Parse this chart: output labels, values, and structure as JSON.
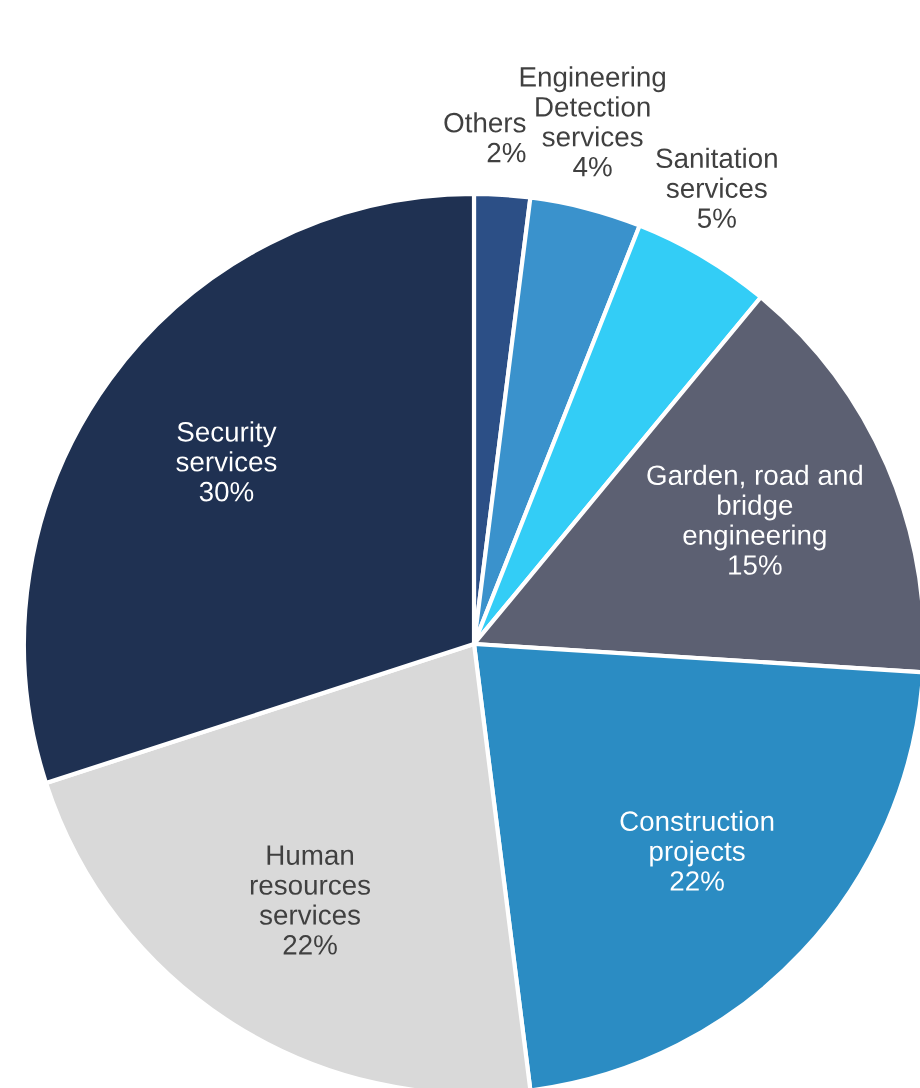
{
  "chart_data": {
    "type": "pie",
    "categories": [
      "Others",
      "Engineering\nDetection\nservices",
      "Sanitation\nservices",
      "Garden, road and\nbridge\nengineering",
      "Construction\nprojects",
      "Human\nresources\nservices",
      "Security\nservices"
    ],
    "values": [
      2,
      4,
      5,
      15,
      22,
      22,
      30
    ],
    "value_labels": [
      "2%",
      "4%",
      "5%",
      "15%",
      "22%",
      "22%",
      "30%"
    ],
    "colors": [
      "#2c4f86",
      "#3a92cc",
      "#33cdf6",
      "#5c6072",
      "#2b8cc3",
      "#d9d9d9",
      "#1f3152"
    ]
  }
}
